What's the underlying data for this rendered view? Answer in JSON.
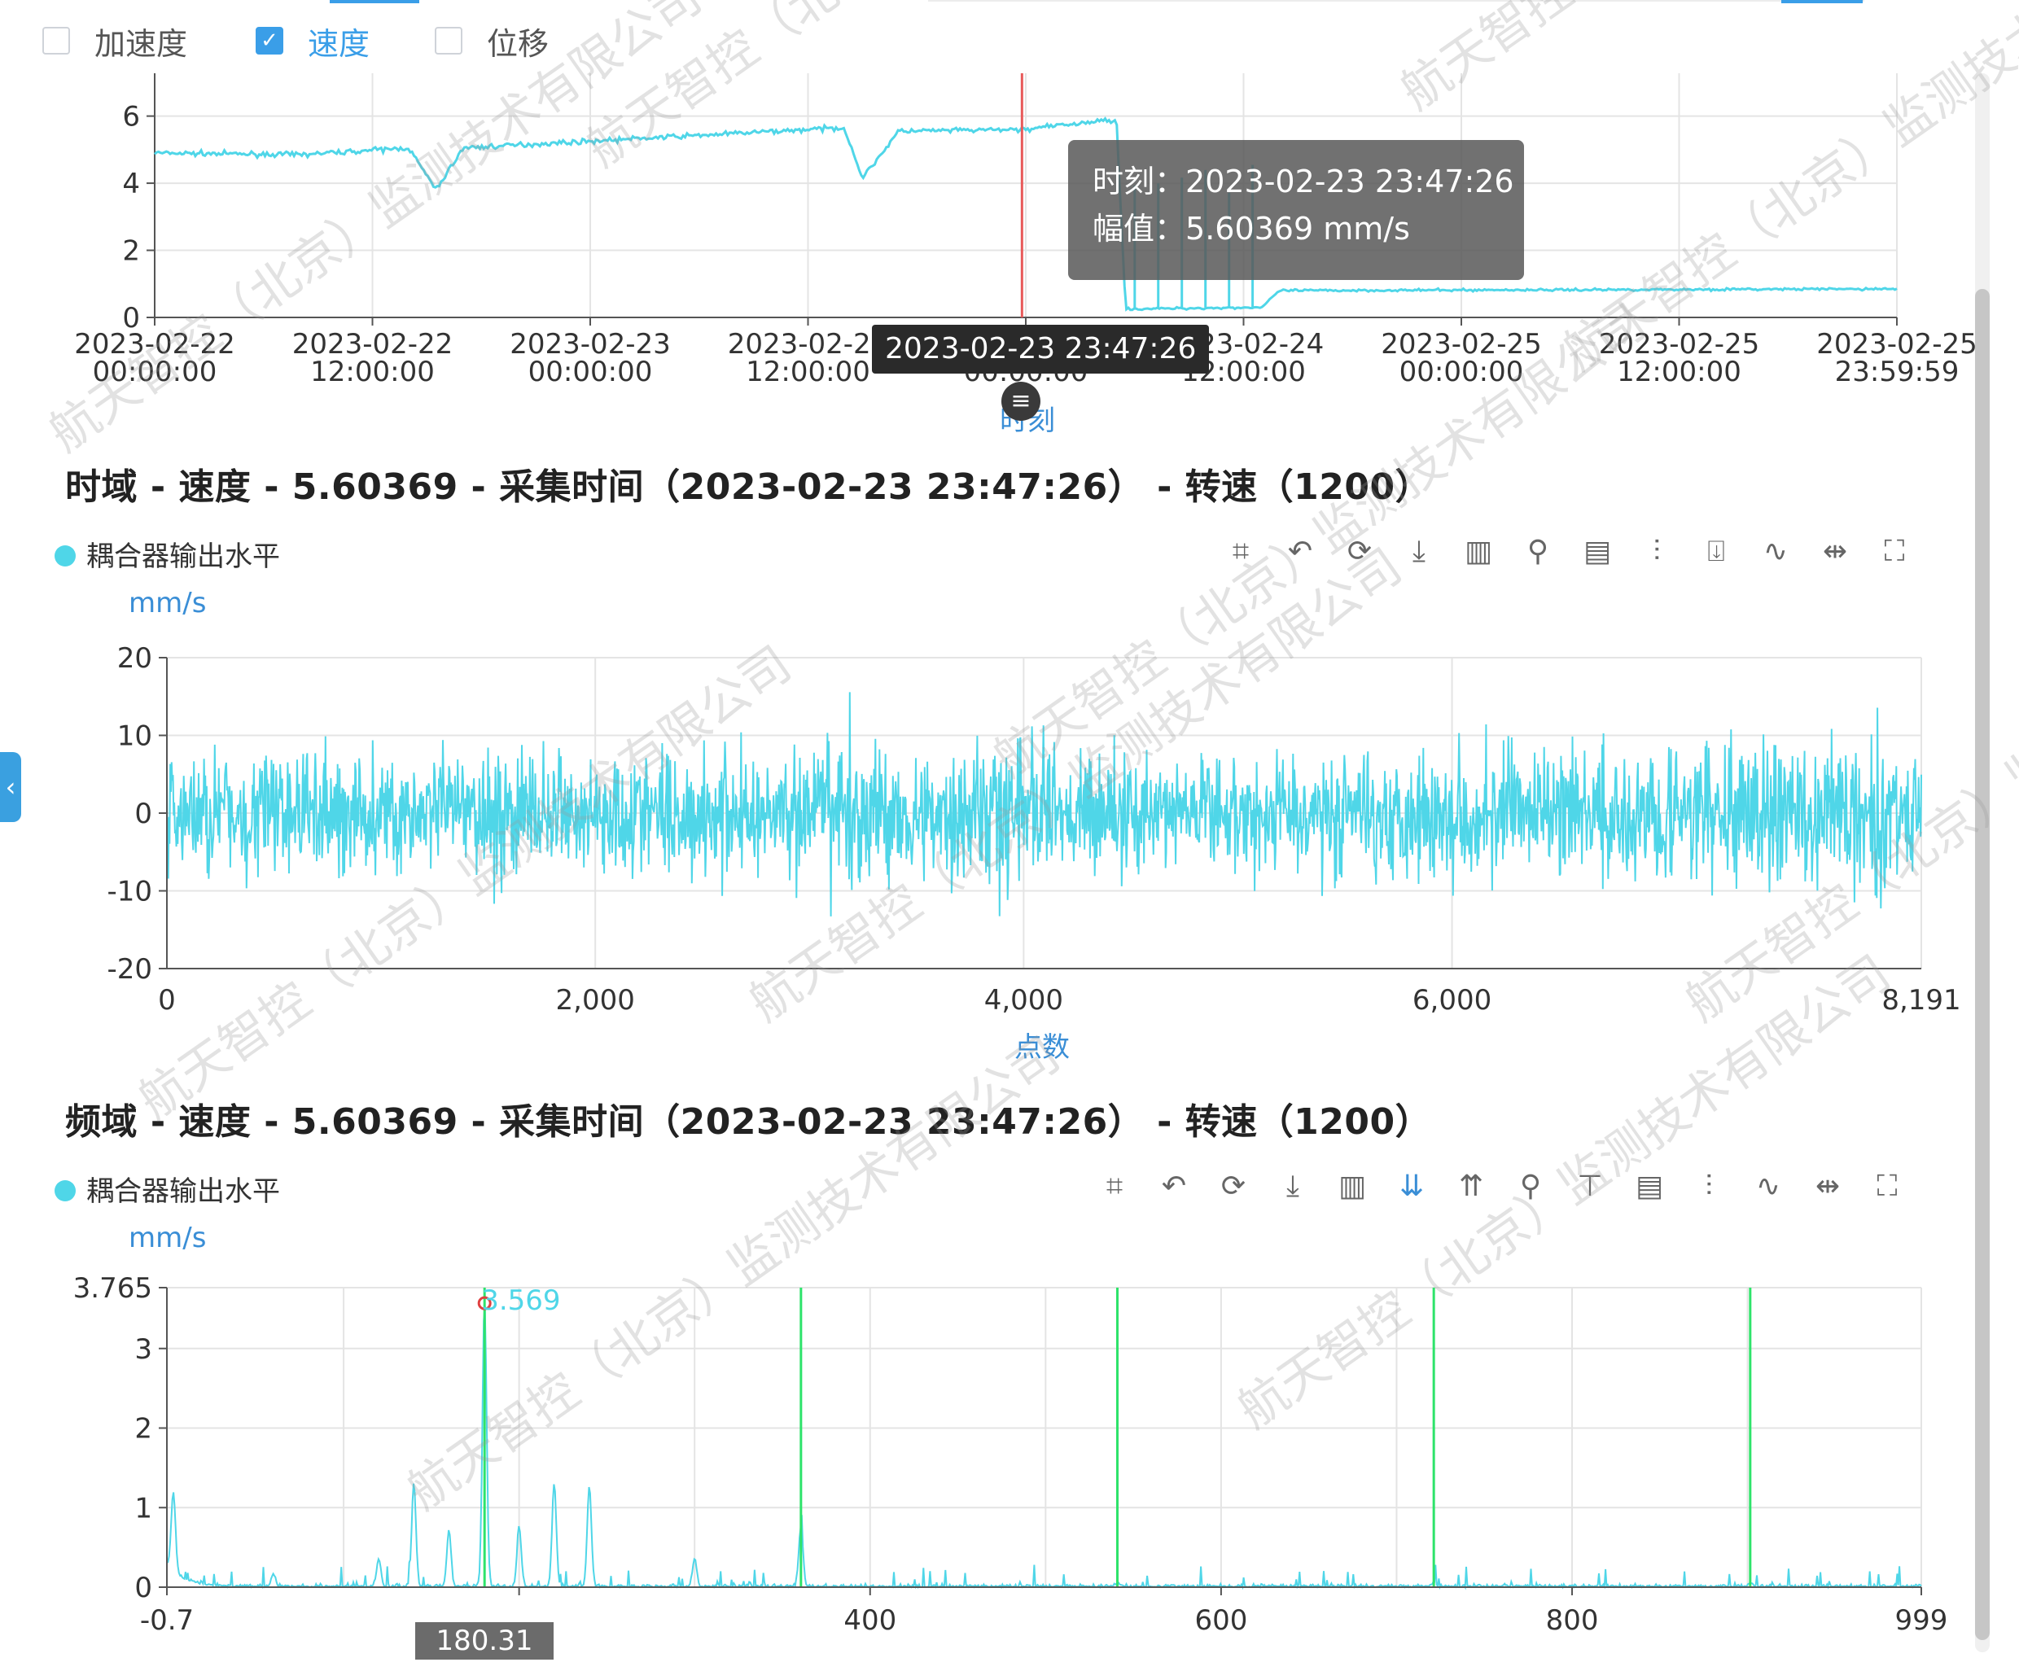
{
  "checkboxes": [
    {
      "label": "加速度",
      "checked": false
    },
    {
      "label": "速度",
      "checked": true
    },
    {
      "label": "位移",
      "checked": false
    }
  ],
  "trend": {
    "tooltip": {
      "time_label": "时刻：",
      "time_value": "2023-02-23 23:47:26",
      "amp_label": "幅值：",
      "amp_value": "5.60369 mm/s"
    },
    "pointer_label": "2023-02-23 23:47:26",
    "xname": "时刻",
    "handle_icon": "≡"
  },
  "time_section": {
    "title": "时域 - 速度 - 5.60369 - 采集时间（2023-02-23 23:47:26） - 转速（1200）",
    "legend": "耦合器输出水平",
    "unit": "mm/s",
    "xname": "点数"
  },
  "freq_section": {
    "title": "频域 - 速度 - 5.60369 - 采集时间（2023-02-23 23:47:26） - 转速（1200）",
    "legend": "耦合器输出水平",
    "unit": "mm/s",
    "pointer_label": "180.31",
    "marker_label": "3.569"
  },
  "toolbar_time": [
    "crop-icon",
    "undo-zoom-icon",
    "refresh-icon",
    "download-icon",
    "columns-icon",
    "marker-icon",
    "report-icon",
    "filter-icon",
    "export-icon",
    "waveform-icon",
    "expand-x-icon",
    "fullscreen-icon"
  ],
  "toolbar_freq": [
    "crop-icon",
    "undo-zoom-icon",
    "refresh-icon",
    "download-icon",
    "columns-icon",
    "sort-desc-icon",
    "sort-asc-icon",
    "marker-icon",
    "harmonic-icon",
    "report-icon",
    "filter-icon",
    "waveform-icon",
    "expand-x-icon",
    "fullscreen-icon"
  ],
  "watermark": "航天智控（北京）监测技术有限公司",
  "colors": {
    "series": "#4fd6e8",
    "harmonic": "#2ee36a",
    "cursor": "#e85a5a",
    "accent": "#3a8ed6"
  },
  "chart_data": [
    {
      "type": "line",
      "title": "",
      "xlabel": "时刻",
      "ylabel": "",
      "x_tick_labels": [
        "2023-02-22 00:00:00",
        "2023-02-22 12:00:00",
        "2023-02-23 00:00:00",
        "2023-02-23 12:00:00",
        "2023-02-24 00:00:00",
        "2023-02-24 12:00:00",
        "2023-02-25 00:00:00",
        "2023-02-25 12:00:00",
        "2023-02-25 23:59:59"
      ],
      "xlim": [
        "2023-02-22 00:00:00",
        "2023-02-25 23:59:59"
      ],
      "ylim": [
        0,
        6.5
      ],
      "y_ticks": [
        0,
        2,
        4,
        6
      ],
      "cursor_time": "2023-02-23 23:47:26",
      "series": [
        {
          "values_by_hour": [
            {
              "t": "2023-02-22 00:00",
              "y": 4.9
            },
            {
              "t": "2023-02-22 08:00",
              "y": 4.85
            },
            {
              "t": "2023-02-22 14:00",
              "y": 5.05
            },
            {
              "t": "2023-02-22 15:30",
              "y": 3.8
            },
            {
              "t": "2023-02-22 17:00",
              "y": 5.05
            },
            {
              "t": "2023-02-23 12:00",
              "y": 5.6
            },
            {
              "t": "2023-02-23 14:00",
              "y": 5.65
            },
            {
              "t": "2023-02-23 15:00",
              "y": 4.15
            },
            {
              "t": "2023-02-23 17:00",
              "y": 5.55
            },
            {
              "t": "2023-02-23 23:47",
              "y": 5.6
            },
            {
              "t": "2023-02-24 05:00",
              "y": 5.9
            },
            {
              "t": "2023-02-24 05:30",
              "y": 0.25
            },
            {
              "t": "2023-02-24 13:00",
              "y": 0.3
            },
            {
              "t": "2023-02-24 14:00",
              "y": 0.8
            },
            {
              "t": "2023-02-25 23:59",
              "y": 0.85
            }
          ]
        }
      ]
    },
    {
      "type": "line",
      "title": "",
      "xlabel": "点数",
      "ylabel": "mm/s",
      "xlim": [
        0,
        8191
      ],
      "ylim": [
        -20,
        20
      ],
      "x_ticks": [
        0,
        2000,
        4000,
        6000,
        8191
      ],
      "y_ticks": [
        -20,
        -10,
        0,
        10,
        20
      ],
      "series": [
        {
          "name": "耦合器输出水平",
          "description_envelope": [
            {
              "x": 0,
              "amp": 11
            },
            {
              "x": 3000,
              "amp": 11
            },
            {
              "x": 3200,
              "amp": 15
            },
            {
              "x": 3300,
              "amp": 12
            },
            {
              "x": 3600,
              "amp": 9
            },
            {
              "x": 3900,
              "amp": 14
            },
            {
              "x": 4000,
              "amp": 16
            },
            {
              "x": 4200,
              "amp": 10
            },
            {
              "x": 6000,
              "amp": 11
            },
            {
              "x": 7900,
              "amp": 13
            },
            {
              "x": 8000,
              "amp": 15
            },
            {
              "x": 8191,
              "amp": 12
            }
          ]
        }
      ]
    },
    {
      "type": "line",
      "title": "",
      "xlabel": "",
      "ylabel": "mm/s",
      "xlim": [
        -0.7,
        999
      ],
      "ylim": [
        0,
        3.765
      ],
      "x_tick_labels": [
        "-0.7",
        "400",
        "600",
        "800",
        "999"
      ],
      "y_ticks": [
        0,
        1,
        2,
        3,
        3.765
      ],
      "harmonic_cursors": [
        180.31,
        360.6,
        540.9,
        721.2,
        901.5
      ],
      "marker": {
        "x": 180.31,
        "y": 3.569
      },
      "series": [
        {
          "name": "耦合器输出水平",
          "peaks": [
            {
              "x": 3,
              "y": 1.0
            },
            {
              "x": 60,
              "y": 0.15
            },
            {
              "x": 120,
              "y": 0.35
            },
            {
              "x": 140,
              "y": 1.3
            },
            {
              "x": 160,
              "y": 0.7
            },
            {
              "x": 180.31,
              "y": 3.569
            },
            {
              "x": 200,
              "y": 0.75
            },
            {
              "x": 220,
              "y": 1.3
            },
            {
              "x": 240,
              "y": 1.25
            },
            {
              "x": 300,
              "y": 0.35
            },
            {
              "x": 360.6,
              "y": 0.75
            },
            {
              "x": 540.9,
              "y": 0.05
            },
            {
              "x": 721.2,
              "y": 0.05
            },
            {
              "x": 901.5,
              "y": 0.05
            }
          ]
        }
      ]
    }
  ]
}
